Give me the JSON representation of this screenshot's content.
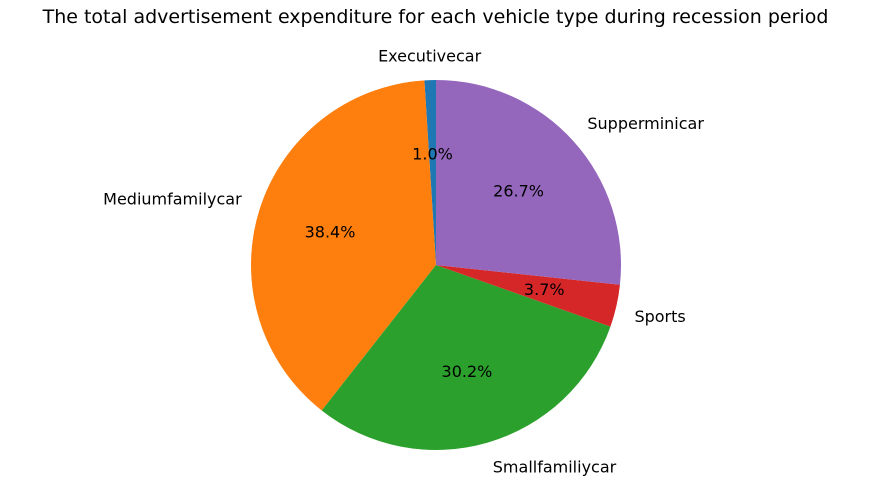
{
  "chart_data": {
    "type": "pie",
    "title": "The total advertisement expenditure for each vehicle type during recession period",
    "slices": [
      {
        "label": "Executivecar",
        "value": 1.0,
        "pct_label": "1.0%",
        "color": "#1f77b4"
      },
      {
        "label": "Mediumfamilycar",
        "value": 38.4,
        "pct_label": "38.4%",
        "color": "#ff7f0e"
      },
      {
        "label": "Smallfamiliycar",
        "value": 30.2,
        "pct_label": "30.2%",
        "color": "#2ca02c"
      },
      {
        "label": "Sports",
        "value": 3.7,
        "pct_label": "3.7%",
        "color": "#d62728"
      },
      {
        "label": "Supperminicar",
        "value": 26.7,
        "pct_label": "26.7%",
        "color": "#9467bd"
      }
    ],
    "start_angle_deg": 90,
    "direction": "counterclockwise"
  }
}
